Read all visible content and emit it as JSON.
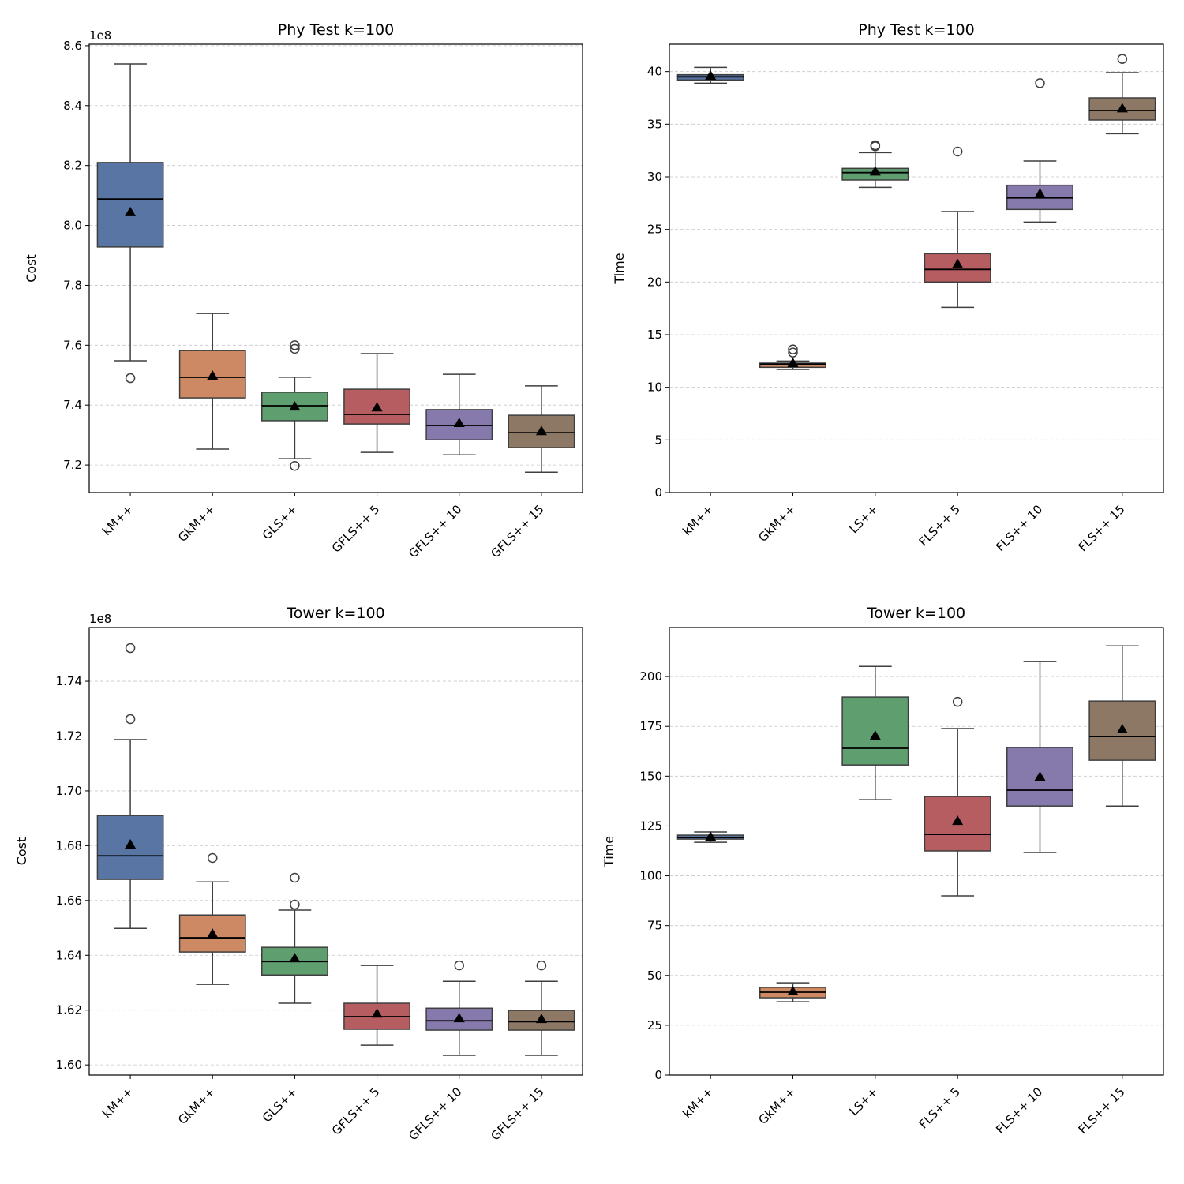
{
  "chart_data": [
    {
      "type": "box",
      "title": "Phy Test k=100",
      "ylabel": "Cost",
      "offset_text": "1e8",
      "ylim": [
        7.108,
        8.605
      ],
      "yticks": [
        7.2,
        7.4,
        7.6,
        7.8,
        8.0,
        8.2,
        8.4,
        8.6
      ],
      "ytick_labels": [
        "7.2",
        "7.4",
        "7.6",
        "7.8",
        "8.0",
        "8.2",
        "8.4",
        "8.6"
      ],
      "grid": true,
      "categories": [
        "kM++",
        "GkM++",
        "GLS++",
        "GFLS++ 5",
        "GFLS++ 10",
        "GFLS++ 15"
      ],
      "colors": [
        "#5975a4",
        "#cc8963",
        "#5f9e6e",
        "#b55d60",
        "#857aab",
        "#8d7866"
      ],
      "boxes": [
        {
          "whislo": 7.548,
          "q1": 7.928,
          "med": 8.088,
          "q3": 8.21,
          "whishi": 8.539,
          "mean": 8.044,
          "fliers": [
            7.49
          ]
        },
        {
          "whislo": 7.253,
          "q1": 7.424,
          "med": 7.493,
          "q3": 7.582,
          "whishi": 7.706,
          "mean": 7.498,
          "fliers": []
        },
        {
          "whislo": 7.221,
          "q1": 7.348,
          "med": 7.398,
          "q3": 7.443,
          "whishi": 7.493,
          "mean": 7.395,
          "fliers": [
            7.6,
            7.588,
            7.197
          ]
        },
        {
          "whislo": 7.242,
          "q1": 7.337,
          "med": 7.369,
          "q3": 7.453,
          "whishi": 7.572,
          "mean": 7.392,
          "fliers": []
        },
        {
          "whislo": 7.234,
          "q1": 7.284,
          "med": 7.332,
          "q3": 7.385,
          "whishi": 7.503,
          "mean": 7.34,
          "fliers": []
        },
        {
          "whislo": 7.176,
          "q1": 7.258,
          "med": 7.308,
          "q3": 7.366,
          "whishi": 7.464,
          "mean": 7.313,
          "fliers": []
        }
      ]
    },
    {
      "type": "box",
      "title": "Phy Test k=100",
      "ylabel": "Time",
      "offset_text": "",
      "ylim": [
        0,
        42.6
      ],
      "yticks": [
        0,
        5,
        10,
        15,
        20,
        25,
        30,
        35,
        40
      ],
      "ytick_labels": [
        "0",
        "5",
        "10",
        "15",
        "20",
        "25",
        "30",
        "35",
        "40"
      ],
      "grid": true,
      "categories": [
        "kM++",
        "GkM++",
        "LS++",
        "FLS++ 5",
        "FLS++ 10",
        "FLS++ 15"
      ],
      "colors": [
        "#5975a4",
        "#cc8963",
        "#5f9e6e",
        "#b55d60",
        "#857aab",
        "#8d7866"
      ],
      "boxes": [
        {
          "whislo": 38.9,
          "q1": 39.2,
          "med": 39.5,
          "q3": 39.7,
          "whishi": 40.4,
          "mean": 39.6,
          "fliers": []
        },
        {
          "whislo": 11.7,
          "q1": 11.9,
          "med": 12.2,
          "q3": 12.3,
          "whishi": 12.5,
          "mean": 12.3,
          "fliers": [
            13.6,
            13.3
          ]
        },
        {
          "whislo": 29.0,
          "q1": 29.7,
          "med": 30.4,
          "q3": 30.8,
          "whishi": 32.3,
          "mean": 30.5,
          "fliers": [
            33.0,
            32.9
          ]
        },
        {
          "whislo": 17.6,
          "q1": 20.0,
          "med": 21.2,
          "q3": 22.7,
          "whishi": 26.7,
          "mean": 21.7,
          "fliers": [
            32.4
          ]
        },
        {
          "whislo": 25.7,
          "q1": 26.9,
          "med": 28.0,
          "q3": 29.2,
          "whishi": 31.5,
          "mean": 28.4,
          "fliers": [
            38.9
          ]
        },
        {
          "whislo": 34.1,
          "q1": 35.4,
          "med": 36.3,
          "q3": 37.5,
          "whishi": 39.9,
          "mean": 36.5,
          "fliers": [
            41.2
          ]
        }
      ]
    },
    {
      "type": "box",
      "title": "Tower k=100",
      "ylabel": "Cost",
      "offset_text": "1e8",
      "ylim": [
        1.5963,
        1.7596
      ],
      "yticks": [
        1.6,
        1.62,
        1.64,
        1.66,
        1.68,
        1.7,
        1.72,
        1.74
      ],
      "ytick_labels": [
        "1.60",
        "1.62",
        "1.64",
        "1.66",
        "1.68",
        "1.70",
        "1.72",
        "1.74"
      ],
      "grid": true,
      "categories": [
        "kM++",
        "GkM++",
        "GLS++",
        "GFLS++ 5",
        "GFLS++ 10",
        "GFLS++ 15"
      ],
      "colors": [
        "#5975a4",
        "#cc8963",
        "#5f9e6e",
        "#b55d60",
        "#857aab",
        "#8d7866"
      ],
      "boxes": [
        {
          "whislo": 1.6498,
          "q1": 1.6677,
          "med": 1.6763,
          "q3": 1.691,
          "whishi": 1.7187,
          "mean": 1.6804,
          "fliers": [
            1.7521,
            1.7262
          ]
        },
        {
          "whislo": 1.6294,
          "q1": 1.6412,
          "med": 1.6464,
          "q3": 1.6547,
          "whishi": 1.6668,
          "mean": 1.6478,
          "fliers": [
            1.6755
          ]
        },
        {
          "whislo": 1.6225,
          "q1": 1.6328,
          "med": 1.6377,
          "q3": 1.6429,
          "whishi": 1.6565,
          "mean": 1.6389,
          "fliers": [
            1.6683,
            1.6585
          ]
        },
        {
          "whislo": 1.6072,
          "q1": 1.613,
          "med": 1.6176,
          "q3": 1.6225,
          "whishi": 1.6363,
          "mean": 1.6187,
          "fliers": []
        },
        {
          "whislo": 1.6035,
          "q1": 1.6127,
          "med": 1.6161,
          "q3": 1.6207,
          "whishi": 1.6305,
          "mean": 1.617,
          "fliers": [
            1.6363
          ]
        },
        {
          "whislo": 1.6035,
          "q1": 1.6127,
          "med": 1.6158,
          "q3": 1.6199,
          "whishi": 1.6305,
          "mean": 1.6167,
          "fliers": [
            1.6363
          ]
        }
      ]
    },
    {
      "type": "box",
      "title": "Tower k=100",
      "ylabel": "Time",
      "offset_text": "",
      "ylim": [
        0,
        224.6
      ],
      "yticks": [
        0,
        25,
        50,
        75,
        100,
        125,
        150,
        175,
        200
      ],
      "ytick_labels": [
        "0",
        "25",
        "50",
        "75",
        "100",
        "125",
        "150",
        "175",
        "200"
      ],
      "grid": true,
      "categories": [
        "kM++",
        "GkM++",
        "LS++",
        "FLS++ 5",
        "FLS++ 10",
        "FLS++ 15"
      ],
      "colors": [
        "#5975a4",
        "#cc8963",
        "#5f9e6e",
        "#b55d60",
        "#857aab",
        "#8d7866"
      ],
      "boxes": [
        {
          "whislo": 116.8,
          "q1": 118.4,
          "med": 119.2,
          "q3": 120.4,
          "whishi": 122.0,
          "mean": 119.6,
          "fliers": []
        },
        {
          "whislo": 36.8,
          "q1": 38.8,
          "med": 41.6,
          "q3": 44.0,
          "whishi": 46.3,
          "mean": 42.0,
          "fliers": []
        },
        {
          "whislo": 138.2,
          "q1": 155.6,
          "med": 164.0,
          "q3": 189.7,
          "whishi": 205.1,
          "mean": 170.3,
          "fliers": []
        },
        {
          "whislo": 89.9,
          "q1": 112.5,
          "med": 120.8,
          "q3": 139.8,
          "whishi": 173.9,
          "mean": 127.5,
          "fliers": [
            187.3
          ]
        },
        {
          "whislo": 111.7,
          "q1": 135.0,
          "med": 143.0,
          "q3": 164.4,
          "whishi": 207.5,
          "mean": 149.7,
          "fliers": []
        },
        {
          "whislo": 135.0,
          "q1": 158.0,
          "med": 169.9,
          "q3": 187.7,
          "whishi": 215.4,
          "mean": 173.5,
          "fliers": []
        }
      ]
    }
  ]
}
